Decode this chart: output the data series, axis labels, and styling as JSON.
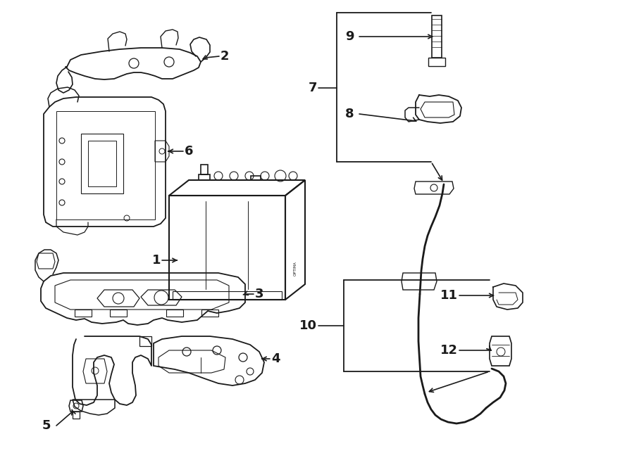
{
  "background": "#ffffff",
  "lc": "#1a1a1a",
  "fig_width": 9.0,
  "fig_height": 6.61,
  "dpi": 100
}
